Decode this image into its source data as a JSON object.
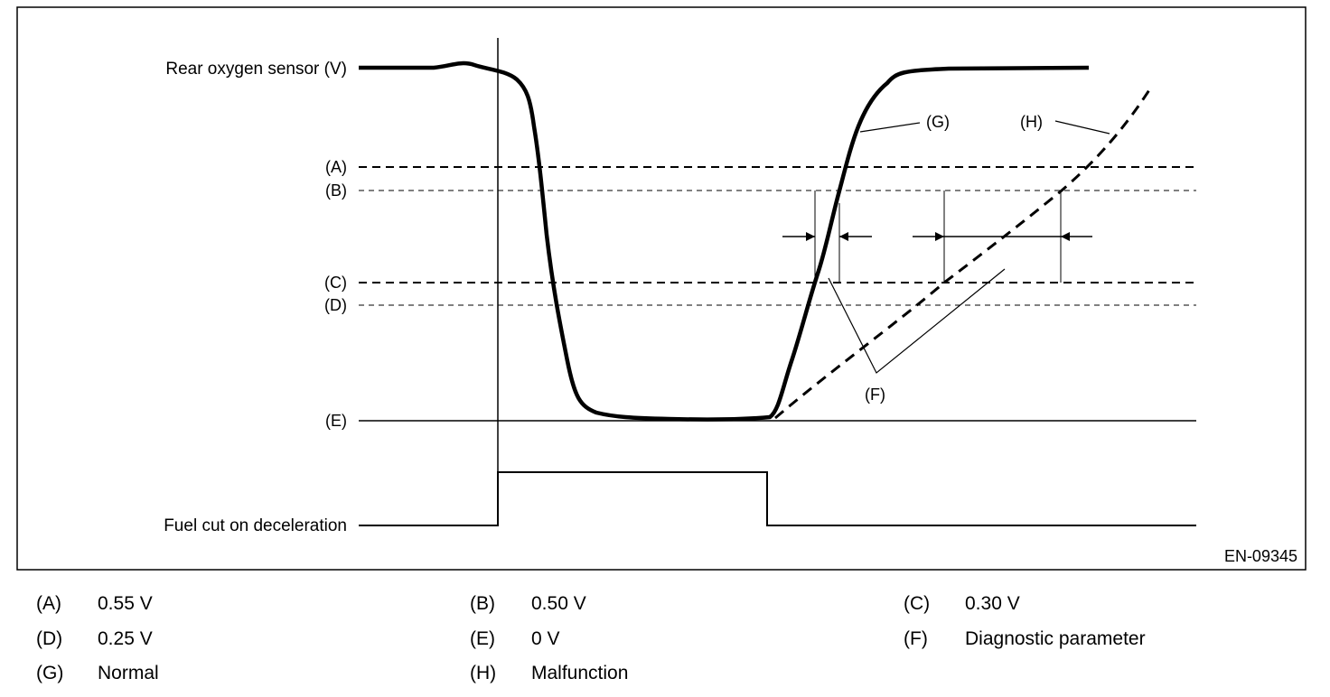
{
  "figure": {
    "code": "EN-09345",
    "axis_labels": {
      "rear_sensor": "Rear oxygen sensor (V)",
      "fuel_cut": "Fuel cut on deceleration"
    },
    "levels": [
      {
        "key": "(A)",
        "style": "dashed-heavy"
      },
      {
        "key": "(B)",
        "style": "dashed-light"
      },
      {
        "key": "(C)",
        "style": "dashed-heavy"
      },
      {
        "key": "(D)",
        "style": "dashed-light"
      },
      {
        "key": "(E)",
        "style": "solid"
      }
    ],
    "callouts": {
      "normal": "(G)",
      "malfunction": "(H)",
      "diagnostic": "(F)"
    }
  },
  "legend": [
    {
      "key": "(A)",
      "text": "0.55 V"
    },
    {
      "key": "(B)",
      "text": "0.50 V"
    },
    {
      "key": "(C)",
      "text": "0.30 V"
    },
    {
      "key": "(D)",
      "text": "0.25 V"
    },
    {
      "key": "(E)",
      "text": "0 V"
    },
    {
      "key": "(F)",
      "text": "Diagnostic parameter"
    },
    {
      "key": "(G)",
      "text": "Normal"
    },
    {
      "key": "(H)",
      "text": "Malfunction"
    }
  ]
}
